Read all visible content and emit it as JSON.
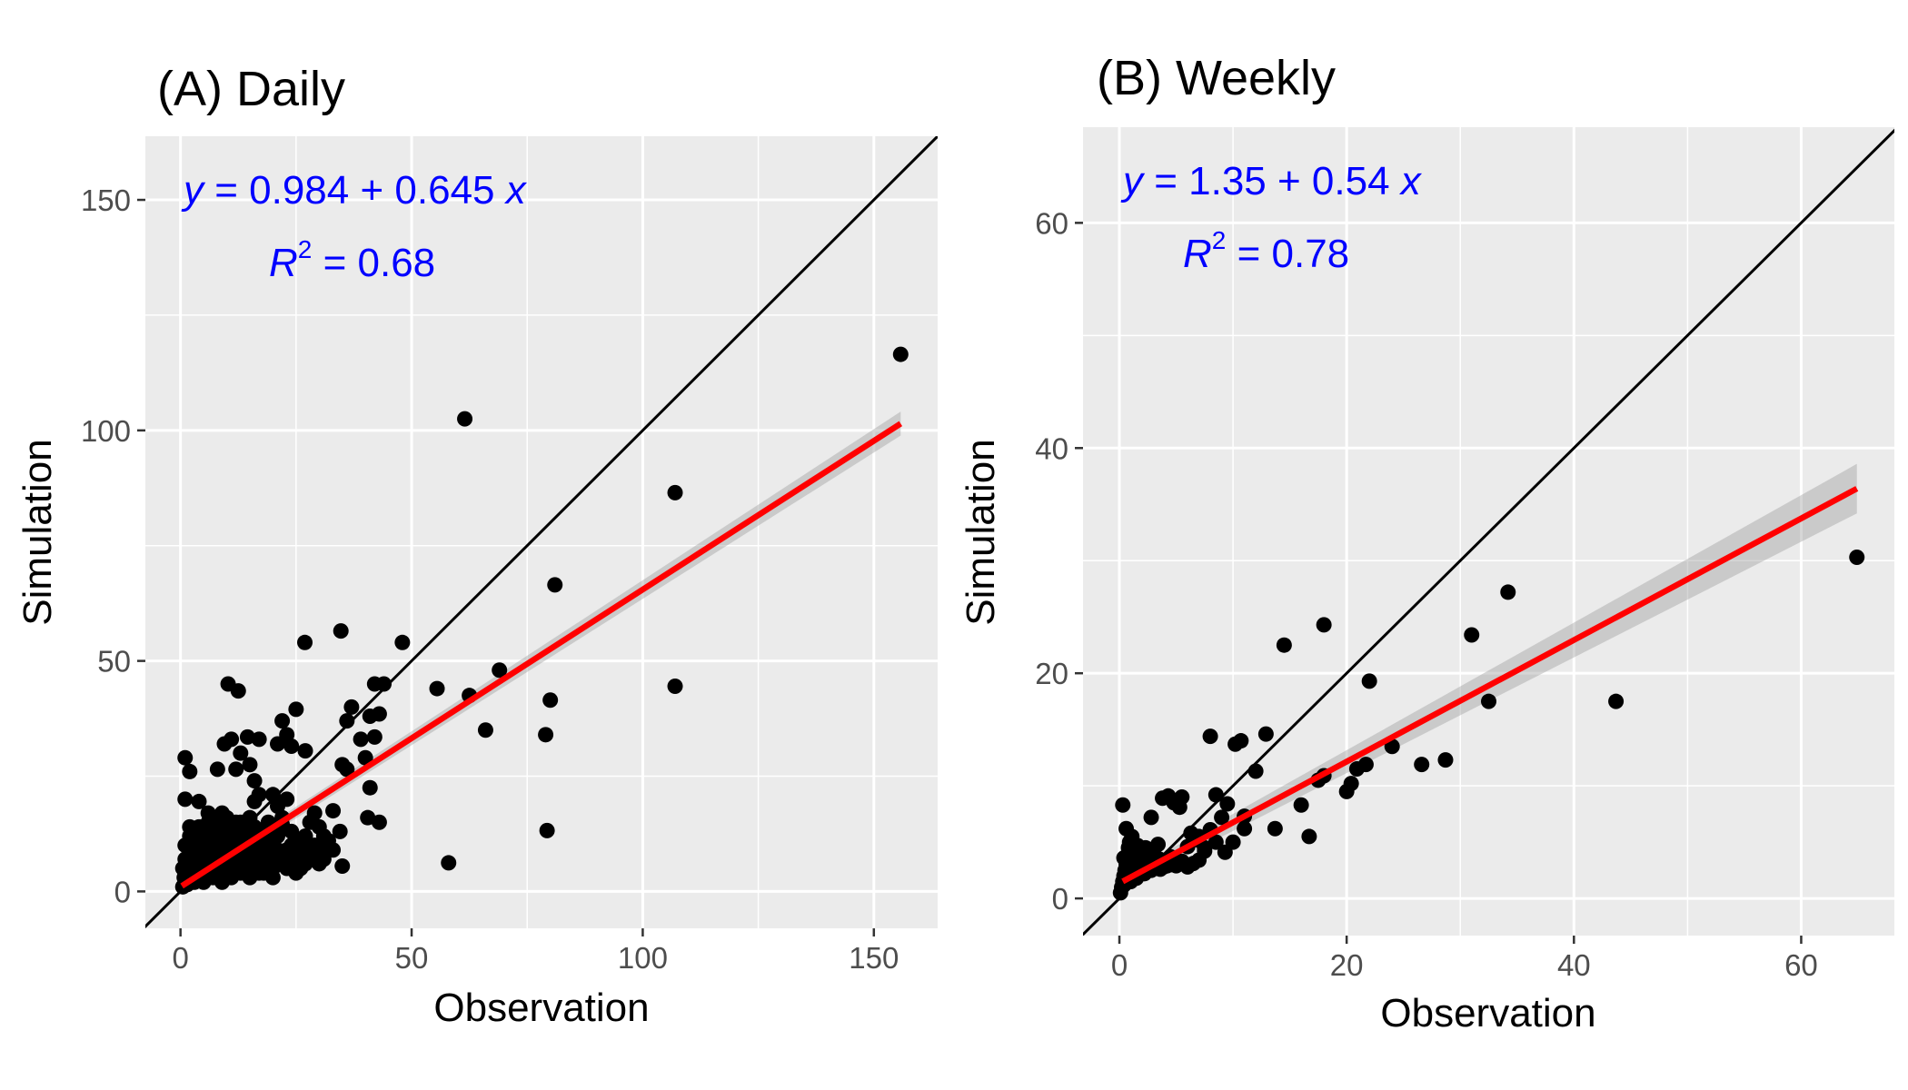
{
  "chart_data": [
    {
      "type": "scatter",
      "title": "(A) Daily",
      "xlabel": "Observation",
      "ylabel": "Simulation",
      "xlim": [
        -7.6,
        163.8
      ],
      "ylim": [
        -8,
        163.8
      ],
      "x_ticks": [
        0,
        50,
        100,
        150
      ],
      "x_tick_labels": [
        "0",
        "50",
        "100",
        "150"
      ],
      "y_ticks": [
        0,
        50,
        100,
        150
      ],
      "y_tick_labels": [
        "0",
        "50",
        "100",
        "150"
      ],
      "grid": true,
      "equation": {
        "y_label": "y",
        "lhs_suffix": " = 0.984 + 0.645 ",
        "x_label": "x",
        "r_label": "R",
        "r_sup": "2",
        "r_value": " = 0.68"
      },
      "fit": {
        "intercept": 0.984,
        "slope": 0.645,
        "x_range": [
          0.3,
          155.8
        ],
        "ci_halfwidth": [
          1.0,
          2.6
        ],
        "color": "#ff0000"
      },
      "identity_line": true,
      "points": [
        [
          155.8,
          116.5
        ],
        [
          61.5,
          102.5
        ],
        [
          107,
          86.5
        ],
        [
          81,
          66.5
        ],
        [
          26.9,
          54
        ],
        [
          34.7,
          56.5
        ],
        [
          48,
          54
        ],
        [
          69,
          48
        ],
        [
          107,
          44.5
        ],
        [
          55.5,
          44
        ],
        [
          62.5,
          42.5
        ],
        [
          80,
          41.5
        ],
        [
          66,
          35
        ],
        [
          79,
          34
        ],
        [
          79.3,
          13.2
        ],
        [
          58,
          6.2
        ],
        [
          10.3,
          45
        ],
        [
          12.5,
          43.5
        ],
        [
          25,
          39.5
        ],
        [
          22,
          37
        ],
        [
          23,
          34
        ],
        [
          21,
          32
        ],
        [
          24,
          31.5
        ],
        [
          27,
          30.5
        ],
        [
          41,
          38
        ],
        [
          43,
          38.5
        ],
        [
          42,
          45
        ],
        [
          44,
          45
        ],
        [
          37,
          40
        ],
        [
          36,
          37
        ],
        [
          39,
          33
        ],
        [
          40,
          29
        ],
        [
          35,
          27.5
        ],
        [
          36,
          26.5
        ],
        [
          42,
          33.5
        ],
        [
          41,
          22.5
        ],
        [
          34.5,
          13
        ],
        [
          33,
          17.5
        ],
        [
          40.5,
          16
        ],
        [
          43,
          15
        ],
        [
          35,
          5.5
        ],
        [
          1,
          29
        ],
        [
          2,
          26
        ],
        [
          9.5,
          32
        ],
        [
          11,
          33
        ],
        [
          14.5,
          33.5
        ],
        [
          17,
          33
        ],
        [
          13,
          30
        ],
        [
          12,
          26.5
        ],
        [
          8,
          26.5
        ],
        [
          4,
          19.5
        ],
        [
          1,
          20
        ],
        [
          15,
          27.5
        ],
        [
          16,
          24
        ],
        [
          16,
          19.5
        ],
        [
          17,
          21
        ],
        [
          20,
          21
        ],
        [
          21,
          18.5
        ],
        [
          22,
          16
        ],
        [
          23,
          20
        ],
        [
          22,
          14.5
        ],
        [
          19,
          14
        ],
        [
          18,
          11
        ],
        [
          16,
          10
        ],
        [
          14,
          12
        ],
        [
          12,
          13
        ],
        [
          10,
          14
        ],
        [
          8,
          16
        ],
        [
          6,
          17
        ],
        [
          4,
          14
        ],
        [
          2,
          12
        ],
        [
          1,
          10
        ],
        [
          2,
          8
        ],
        [
          3,
          6
        ],
        [
          1,
          4
        ],
        [
          1,
          2
        ],
        [
          0.5,
          1
        ],
        [
          2,
          3
        ],
        [
          3,
          4
        ],
        [
          4,
          3
        ],
        [
          5,
          2
        ],
        [
          6,
          4
        ],
        [
          7,
          5
        ],
        [
          8,
          3
        ],
        [
          9,
          5
        ],
        [
          10,
          4
        ],
        [
          11,
          6
        ],
        [
          12,
          5
        ],
        [
          13,
          7
        ],
        [
          14,
          6
        ],
        [
          15,
          8
        ],
        [
          16,
          5
        ],
        [
          17,
          7
        ],
        [
          18,
          6
        ],
        [
          19,
          8
        ],
        [
          20,
          7
        ],
        [
          21,
          9
        ],
        [
          22,
          6
        ],
        [
          23,
          8
        ],
        [
          24,
          10
        ],
        [
          25,
          7
        ],
        [
          26,
          9
        ],
        [
          27,
          11
        ],
        [
          28,
          8
        ],
        [
          29,
          10
        ],
        [
          30,
          9
        ],
        [
          31,
          12
        ],
        [
          32,
          11
        ],
        [
          29,
          17
        ],
        [
          30,
          14
        ],
        [
          27,
          12
        ],
        [
          25,
          11
        ],
        [
          23,
          9
        ],
        [
          21,
          6
        ],
        [
          19,
          5
        ],
        [
          17,
          4
        ],
        [
          15,
          3
        ],
        [
          13,
          4
        ],
        [
          11,
          3
        ],
        [
          9,
          2
        ],
        [
          7,
          3
        ],
        [
          5,
          4
        ],
        [
          3,
          2
        ],
        [
          2,
          5
        ],
        [
          4,
          6
        ],
        [
          6,
          7
        ],
        [
          8,
          9
        ],
        [
          10,
          8
        ],
        [
          12,
          10
        ],
        [
          14,
          9
        ],
        [
          16,
          11
        ],
        [
          18,
          12
        ],
        [
          20,
          10
        ],
        [
          3,
          9
        ],
        [
          5,
          10
        ],
        [
          7,
          11
        ],
        [
          9,
          12
        ],
        [
          11,
          13
        ],
        [
          13,
          15
        ],
        [
          15,
          16
        ],
        [
          6,
          15
        ],
        [
          8,
          13
        ],
        [
          10,
          11
        ],
        [
          12,
          9
        ],
        [
          14,
          8
        ],
        [
          5,
          7
        ],
        [
          7,
          8
        ],
        [
          9,
          9
        ],
        [
          11,
          10
        ],
        [
          13,
          11
        ],
        [
          15,
          12
        ],
        [
          2,
          14
        ],
        [
          3,
          12
        ],
        [
          1,
          7
        ],
        [
          0.5,
          5
        ],
        [
          0.8,
          3
        ],
        [
          1.5,
          1.5
        ],
        [
          2.5,
          2.5
        ],
        [
          4,
          5
        ],
        [
          6,
          6
        ],
        [
          8,
          7
        ],
        [
          10,
          6
        ],
        [
          12,
          7
        ],
        [
          14,
          4
        ],
        [
          16,
          6
        ],
        [
          18,
          8
        ],
        [
          20,
          5
        ],
        [
          22,
          7
        ],
        [
          24,
          6
        ],
        [
          26,
          5
        ],
        [
          28,
          7
        ],
        [
          30,
          6
        ],
        [
          19,
          15
        ],
        [
          21,
          12
        ],
        [
          18,
          10
        ],
        [
          16,
          14
        ],
        [
          14,
          14
        ],
        [
          12,
          15
        ],
        [
          10,
          16
        ],
        [
          9,
          17
        ],
        [
          7,
          14
        ],
        [
          5,
          12
        ],
        [
          3,
          11
        ],
        [
          4,
          8
        ],
        [
          6,
          9
        ],
        [
          8,
          10
        ],
        [
          10,
          12
        ],
        [
          12,
          11
        ],
        [
          14,
          10
        ],
        [
          16,
          8
        ],
        [
          18,
          4
        ],
        [
          20,
          3
        ],
        [
          23,
          5
        ],
        [
          25,
          4
        ],
        [
          27,
          6
        ],
        [
          31,
          7
        ],
        [
          33,
          9
        ],
        [
          28,
          15
        ],
        [
          24,
          13
        ]
      ]
    },
    {
      "type": "scatter",
      "title": "(B) Weekly",
      "xlabel": "Observation",
      "ylabel": "Simulation",
      "xlim": [
        -3.2,
        68.2
      ],
      "ylim": [
        -3.3,
        68.5
      ],
      "x_ticks": [
        0,
        20,
        40,
        60
      ],
      "x_tick_labels": [
        "0",
        "20",
        "40",
        "60"
      ],
      "y_ticks": [
        0,
        20,
        40,
        60
      ],
      "y_tick_labels": [
        "0",
        "20",
        "40",
        "60"
      ],
      "grid": true,
      "equation": {
        "y_label": "y",
        "lhs_suffix": " = 1.35 + 0.54 ",
        "x_label": "x",
        "r_label": "R",
        "r_sup": "2",
        "r_value": " = 0.78"
      },
      "fit": {
        "intercept": 1.35,
        "slope": 0.54,
        "x_range": [
          0.3,
          64.9
        ],
        "ci_halfwidth": [
          0.5,
          2.2
        ],
        "color": "#ff0000"
      },
      "identity_line": true,
      "points": [
        [
          64.9,
          30.3
        ],
        [
          43.7,
          17.5
        ],
        [
          34.2,
          27.2
        ],
        [
          31,
          23.4
        ],
        [
          32.5,
          17.5
        ],
        [
          28.7,
          12.3
        ],
        [
          26.6,
          11.9
        ],
        [
          24,
          13.5
        ],
        [
          22,
          19.3
        ],
        [
          21.7,
          11.9
        ],
        [
          20.9,
          11.5
        ],
        [
          20.4,
          10.2
        ],
        [
          20,
          9.5
        ],
        [
          18,
          24.3
        ],
        [
          18,
          10.9
        ],
        [
          17.5,
          10.5
        ],
        [
          16.7,
          5.5
        ],
        [
          16,
          8.3
        ],
        [
          14.5,
          22.5
        ],
        [
          13.7,
          6.2
        ],
        [
          12.9,
          14.6
        ],
        [
          12,
          11.3
        ],
        [
          10.7,
          14
        ],
        [
          10.2,
          13.7
        ],
        [
          8,
          14.4
        ],
        [
          11,
          7.3
        ],
        [
          11,
          6.2
        ],
        [
          10,
          5
        ],
        [
          9.3,
          4.1
        ],
        [
          9.5,
          8.4
        ],
        [
          8.5,
          9.2
        ],
        [
          9,
          7.2
        ],
        [
          8,
          6.1
        ],
        [
          7,
          5.5
        ],
        [
          6.3,
          5.8
        ],
        [
          5.5,
          9
        ],
        [
          4.8,
          8.5
        ],
        [
          4.3,
          9.1
        ],
        [
          3.8,
          8.9
        ],
        [
          2.8,
          7.2
        ],
        [
          5.3,
          8.1
        ],
        [
          6,
          4.6
        ],
        [
          6.9,
          5.2
        ],
        [
          7.5,
          4.5
        ],
        [
          8.5,
          5
        ],
        [
          0.3,
          8.3
        ],
        [
          0.6,
          6.2
        ],
        [
          1.1,
          5.5
        ],
        [
          1.6,
          4.7
        ],
        [
          2,
          4.2
        ],
        [
          2.5,
          3.8
        ],
        [
          3,
          4.2
        ],
        [
          3.5,
          3.5
        ],
        [
          4,
          3.2
        ],
        [
          4.5,
          3.7
        ],
        [
          5,
          2.9
        ],
        [
          5.5,
          3.3
        ],
        [
          6,
          2.8
        ],
        [
          6.5,
          3.1
        ],
        [
          7,
          3.4
        ],
        [
          7.5,
          4.2
        ],
        [
          0.1,
          0.5
        ],
        [
          0.2,
          1
        ],
        [
          0.3,
          1.5
        ],
        [
          0.4,
          2
        ],
        [
          0.5,
          2.5
        ],
        [
          0.6,
          3
        ],
        [
          0.7,
          3.5
        ],
        [
          0.8,
          4.5
        ],
        [
          1,
          1.5
        ],
        [
          1.2,
          2
        ],
        [
          1.4,
          2.5
        ],
        [
          1.6,
          3
        ],
        [
          1.8,
          3.3
        ],
        [
          2,
          2.6
        ],
        [
          2.2,
          2.2
        ],
        [
          2.4,
          2.8
        ],
        [
          2.6,
          3.2
        ],
        [
          2.8,
          2.5
        ],
        [
          3.1,
          2.9
        ],
        [
          3.3,
          3.1
        ],
        [
          3.6,
          2.6
        ],
        [
          3.9,
          2.8
        ],
        [
          4.2,
          2.9
        ],
        [
          4.6,
          3
        ],
        [
          1.3,
          3.8
        ],
        [
          1.7,
          4.1
        ],
        [
          2.3,
          4.5
        ],
        [
          0.9,
          5
        ],
        [
          3.4,
          4.8
        ],
        [
          0.4,
          3.6
        ],
        [
          1.5,
          1.8
        ]
      ]
    }
  ]
}
